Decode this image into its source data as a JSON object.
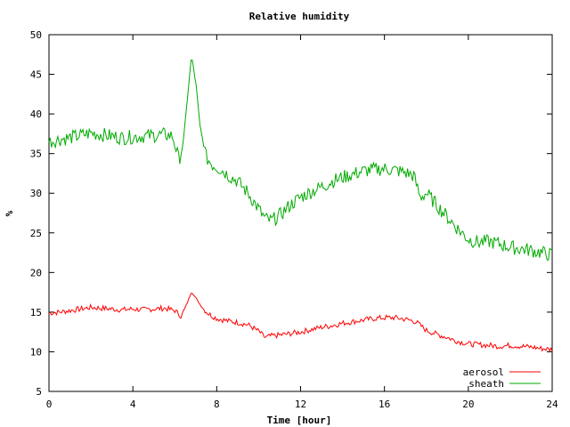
{
  "chart_data": {
    "type": "line",
    "title": "Relative humidity",
    "xlabel": "Time [hour]",
    "ylabel": "%",
    "xlim": [
      0,
      24
    ],
    "ylim": [
      5,
      50
    ],
    "xticks": [
      0,
      4,
      8,
      12,
      16,
      20,
      24
    ],
    "yticks": [
      5,
      10,
      15,
      20,
      25,
      30,
      35,
      40,
      45,
      50
    ],
    "grid": false,
    "legend_position": "bottom-right",
    "series": [
      {
        "name": "aerosol",
        "color": "#ff0000",
        "x": [
          0,
          0.5,
          1,
          1.5,
          2,
          2.5,
          3,
          3.5,
          4,
          4.5,
          5,
          5.5,
          6,
          6.3,
          6.6,
          6.8,
          7,
          7.3,
          7.6,
          8,
          8.5,
          9,
          9.5,
          10,
          10.3,
          10.6,
          11,
          11.5,
          12,
          12.5,
          13,
          13.5,
          14,
          14.5,
          15,
          15.5,
          16,
          16.5,
          17,
          17.5,
          18,
          18.5,
          19,
          19.5,
          20,
          20.5,
          21,
          21.5,
          22,
          22.5,
          23,
          23.5,
          24
        ],
        "y": [
          14.9,
          15.0,
          15.2,
          15.4,
          15.6,
          15.5,
          15.4,
          15.3,
          15.4,
          15.3,
          15.4,
          15.5,
          15.2,
          14.5,
          16.2,
          17.6,
          16.8,
          15.6,
          14.8,
          14.2,
          13.9,
          13.7,
          13.4,
          12.6,
          11.8,
          12.0,
          12.1,
          12.3,
          12.5,
          12.8,
          13.1,
          13.3,
          13.6,
          13.8,
          14.0,
          14.2,
          14.3,
          14.3,
          14.1,
          13.8,
          12.7,
          12.2,
          11.8,
          11.3,
          11.0,
          10.9,
          10.8,
          10.7,
          10.8,
          10.7,
          10.6,
          10.4,
          10.3
        ]
      },
      {
        "name": "sheath",
        "color": "#00aa00",
        "x": [
          0,
          0.5,
          1,
          1.5,
          2,
          2.5,
          3,
          3.5,
          4,
          4.5,
          5,
          5.5,
          5.9,
          6.2,
          6.4,
          6.6,
          6.8,
          7.0,
          7.2,
          7.5,
          7.8,
          8.2,
          8.6,
          9,
          9.5,
          10,
          10.3,
          10.6,
          11,
          11.5,
          12,
          12.5,
          13,
          13.5,
          14,
          14.5,
          15,
          15.5,
          16,
          16.5,
          17,
          17.4,
          17.7,
          18,
          18.5,
          19,
          19.5,
          20,
          20.5,
          21,
          21.5,
          22,
          22.5,
          23,
          23.5,
          24
        ],
        "y": [
          36.5,
          36.8,
          37.0,
          37.3,
          37.6,
          37.4,
          37.2,
          37.0,
          37.1,
          37.2,
          37.3,
          37.4,
          37.2,
          34.2,
          36.2,
          42.0,
          47.3,
          44.0,
          38.5,
          34.5,
          33.6,
          33.0,
          32.2,
          31.5,
          30.0,
          28.0,
          26.8,
          26.5,
          27.2,
          28.5,
          29.5,
          30.2,
          30.8,
          31.5,
          32.0,
          32.4,
          32.8,
          33.0,
          33.1,
          32.9,
          32.6,
          32.2,
          29.5,
          30.0,
          28.5,
          27.0,
          25.5,
          24.2,
          23.8,
          23.9,
          23.6,
          23.2,
          23.0,
          22.8,
          22.5,
          22.2
        ]
      }
    ]
  }
}
